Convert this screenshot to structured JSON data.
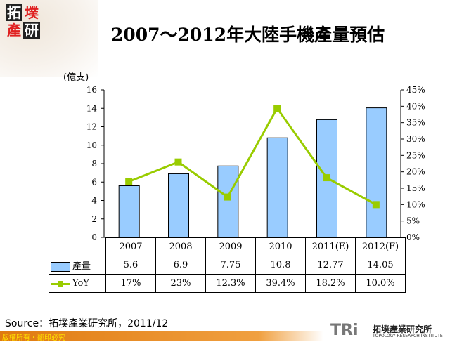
{
  "header": {
    "title": "2007～2012年大陸手機產量預估",
    "logo_text": [
      "拓",
      "墣",
      "產",
      "研"
    ]
  },
  "chart_data": {
    "type": "bar+line",
    "title": "2007～2012年大陸手機產量預估",
    "categories": [
      "2007",
      "2008",
      "2009",
      "2010",
      "2011(E)",
      "2012(F)"
    ],
    "y_left": {
      "label": "(億支)",
      "range": [
        0,
        16
      ],
      "ticks": [
        "0",
        "2",
        "4",
        "6",
        "8",
        "10",
        "12",
        "14",
        "16"
      ]
    },
    "y_right": {
      "range": [
        0,
        45
      ],
      "ticks": [
        "0%",
        "5%",
        "10%",
        "15%",
        "20%",
        "25%",
        "30%",
        "35%",
        "40%",
        "45%"
      ]
    },
    "series": [
      {
        "name": "產量",
        "type": "bar",
        "axis": "left",
        "color": "#99ccff",
        "values": [
          5.6,
          6.9,
          7.75,
          10.8,
          12.77,
          14.05
        ],
        "labels": [
          "5.6",
          "6.9",
          "7.75",
          "10.8",
          "12.77",
          "14.05"
        ]
      },
      {
        "name": "YoY",
        "type": "line",
        "axis": "right",
        "color": "#99cc00",
        "values": [
          17,
          23,
          12.3,
          39.4,
          18.2,
          10.0
        ],
        "labels": [
          "17%",
          "23%",
          "12.3%",
          "39.4%",
          "18.2%",
          "10.0%"
        ]
      }
    ],
    "grid": false,
    "legend": "data-table"
  },
  "source": "Source：拓墣產業研究所，2011/12",
  "footer": {
    "copyright": "版權所有・翻印必究",
    "brand": "TRi",
    "brand_cn": "拓墣產業研究所",
    "brand_en": "TOPOLOGY RESEARCH INSTITUTE"
  }
}
